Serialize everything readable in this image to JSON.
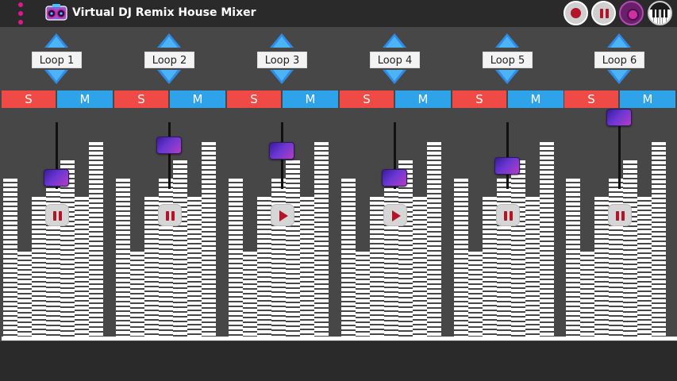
{
  "app": {
    "title": "Virtual DJ Remix House Mixer",
    "logo_icon": "dj-boombox-icon",
    "menu_icon": "overflow-dots-icon",
    "accent_color": "#e0188f"
  },
  "toolbar": {
    "record_icon": "record-icon",
    "pause_icon": "pause-icon",
    "vinyl_icon": "vinyl-disc-icon",
    "piano_icon": "piano-keys-icon"
  },
  "channels": [
    {
      "label": "Loop 1",
      "solo": "S",
      "mute": "M",
      "state": "playing",
      "volume": 0.21
    },
    {
      "label": "Loop 2",
      "solo": "S",
      "mute": "M",
      "state": "playing",
      "volume": 0.62
    },
    {
      "label": "Loop 3",
      "solo": "S",
      "mute": "M",
      "state": "stopped",
      "volume": 0.57
    },
    {
      "label": "Loop 4",
      "solo": "S",
      "mute": "M",
      "state": "stopped",
      "volume": 0.21
    },
    {
      "label": "Loop 5",
      "solo": "S",
      "mute": "M",
      "state": "playing",
      "volume": 0.34
    },
    {
      "label": "Loop 6",
      "solo": "S",
      "mute": "M",
      "state": "playing",
      "volume": 1.0
    }
  ],
  "colors": {
    "solo": "#ef4a45",
    "mute": "#2ea3ea",
    "background": "#474747",
    "bar": "#2a2a2a"
  }
}
